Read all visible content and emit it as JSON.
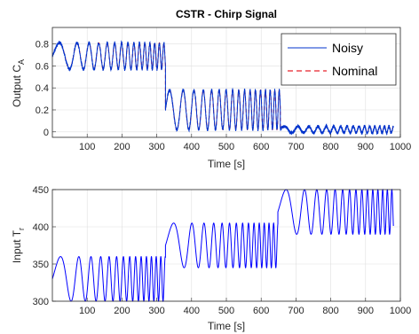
{
  "chart_data": [
    {
      "type": "line",
      "title": "CSTR - Chirp Signal",
      "xlabel": "Time [s]",
      "ylabel_main": "Output C",
      "ylabel_sub": "A",
      "xlim": [
        0,
        1000
      ],
      "ylim": [
        -0.05,
        0.95
      ],
      "xticks": [
        100,
        200,
        300,
        400,
        500,
        600,
        700,
        800,
        900,
        1000
      ],
      "yticks": [
        0,
        0.2,
        0.4,
        0.6,
        0.8
      ],
      "ytick_labels": [
        "0",
        "0.2",
        "0.4",
        "0.6",
        "0.8"
      ],
      "grid": true,
      "legend_position": "top-right",
      "series": [
        {
          "name": "Noisy",
          "color": "#0033cc",
          "style": "solid"
        },
        {
          "name": "Nominal",
          "color": "#e8202a",
          "style": "dashed"
        }
      ],
      "segments": [
        {
          "t0": 0,
          "t1": 325,
          "mean": 0.69,
          "amp": 0.12,
          "f0": 0.01,
          "f1": 0.08
        },
        {
          "t0": 325,
          "t1": 655,
          "mean": 0.2,
          "amp": 0.18,
          "f0": 0.02,
          "f1": 0.08
        },
        {
          "t0": 655,
          "t1": 980,
          "mean": 0.02,
          "amp": 0.03,
          "f0": 0.02,
          "f1": 0.08
        }
      ]
    },
    {
      "type": "line",
      "title": "",
      "xlabel": "Time [s]",
      "ylabel_main": "Input T",
      "ylabel_sub": "r",
      "xlim": [
        0,
        1000
      ],
      "ylim": [
        300,
        450
      ],
      "xticks": [
        100,
        200,
        300,
        400,
        500,
        600,
        700,
        800,
        900,
        1000
      ],
      "yticks": [
        300,
        350,
        400,
        450
      ],
      "ytick_labels": [
        "300",
        "350",
        "400",
        "450"
      ],
      "grid": true,
      "series": [
        {
          "name": "",
          "color": "#0000ff",
          "style": "solid"
        }
      ],
      "segments": [
        {
          "t0": 0,
          "t1": 325,
          "mean": 330,
          "amp": 30,
          "f0": 0.008,
          "f1": 0.08
        },
        {
          "t0": 325,
          "t1": 648,
          "mean": 375,
          "amp": 30,
          "f0": 0.008,
          "f1": 0.08
        },
        {
          "t0": 648,
          "t1": 980,
          "mean": 420,
          "amp": 30,
          "f0": 0.008,
          "f1": 0.08
        }
      ]
    }
  ]
}
